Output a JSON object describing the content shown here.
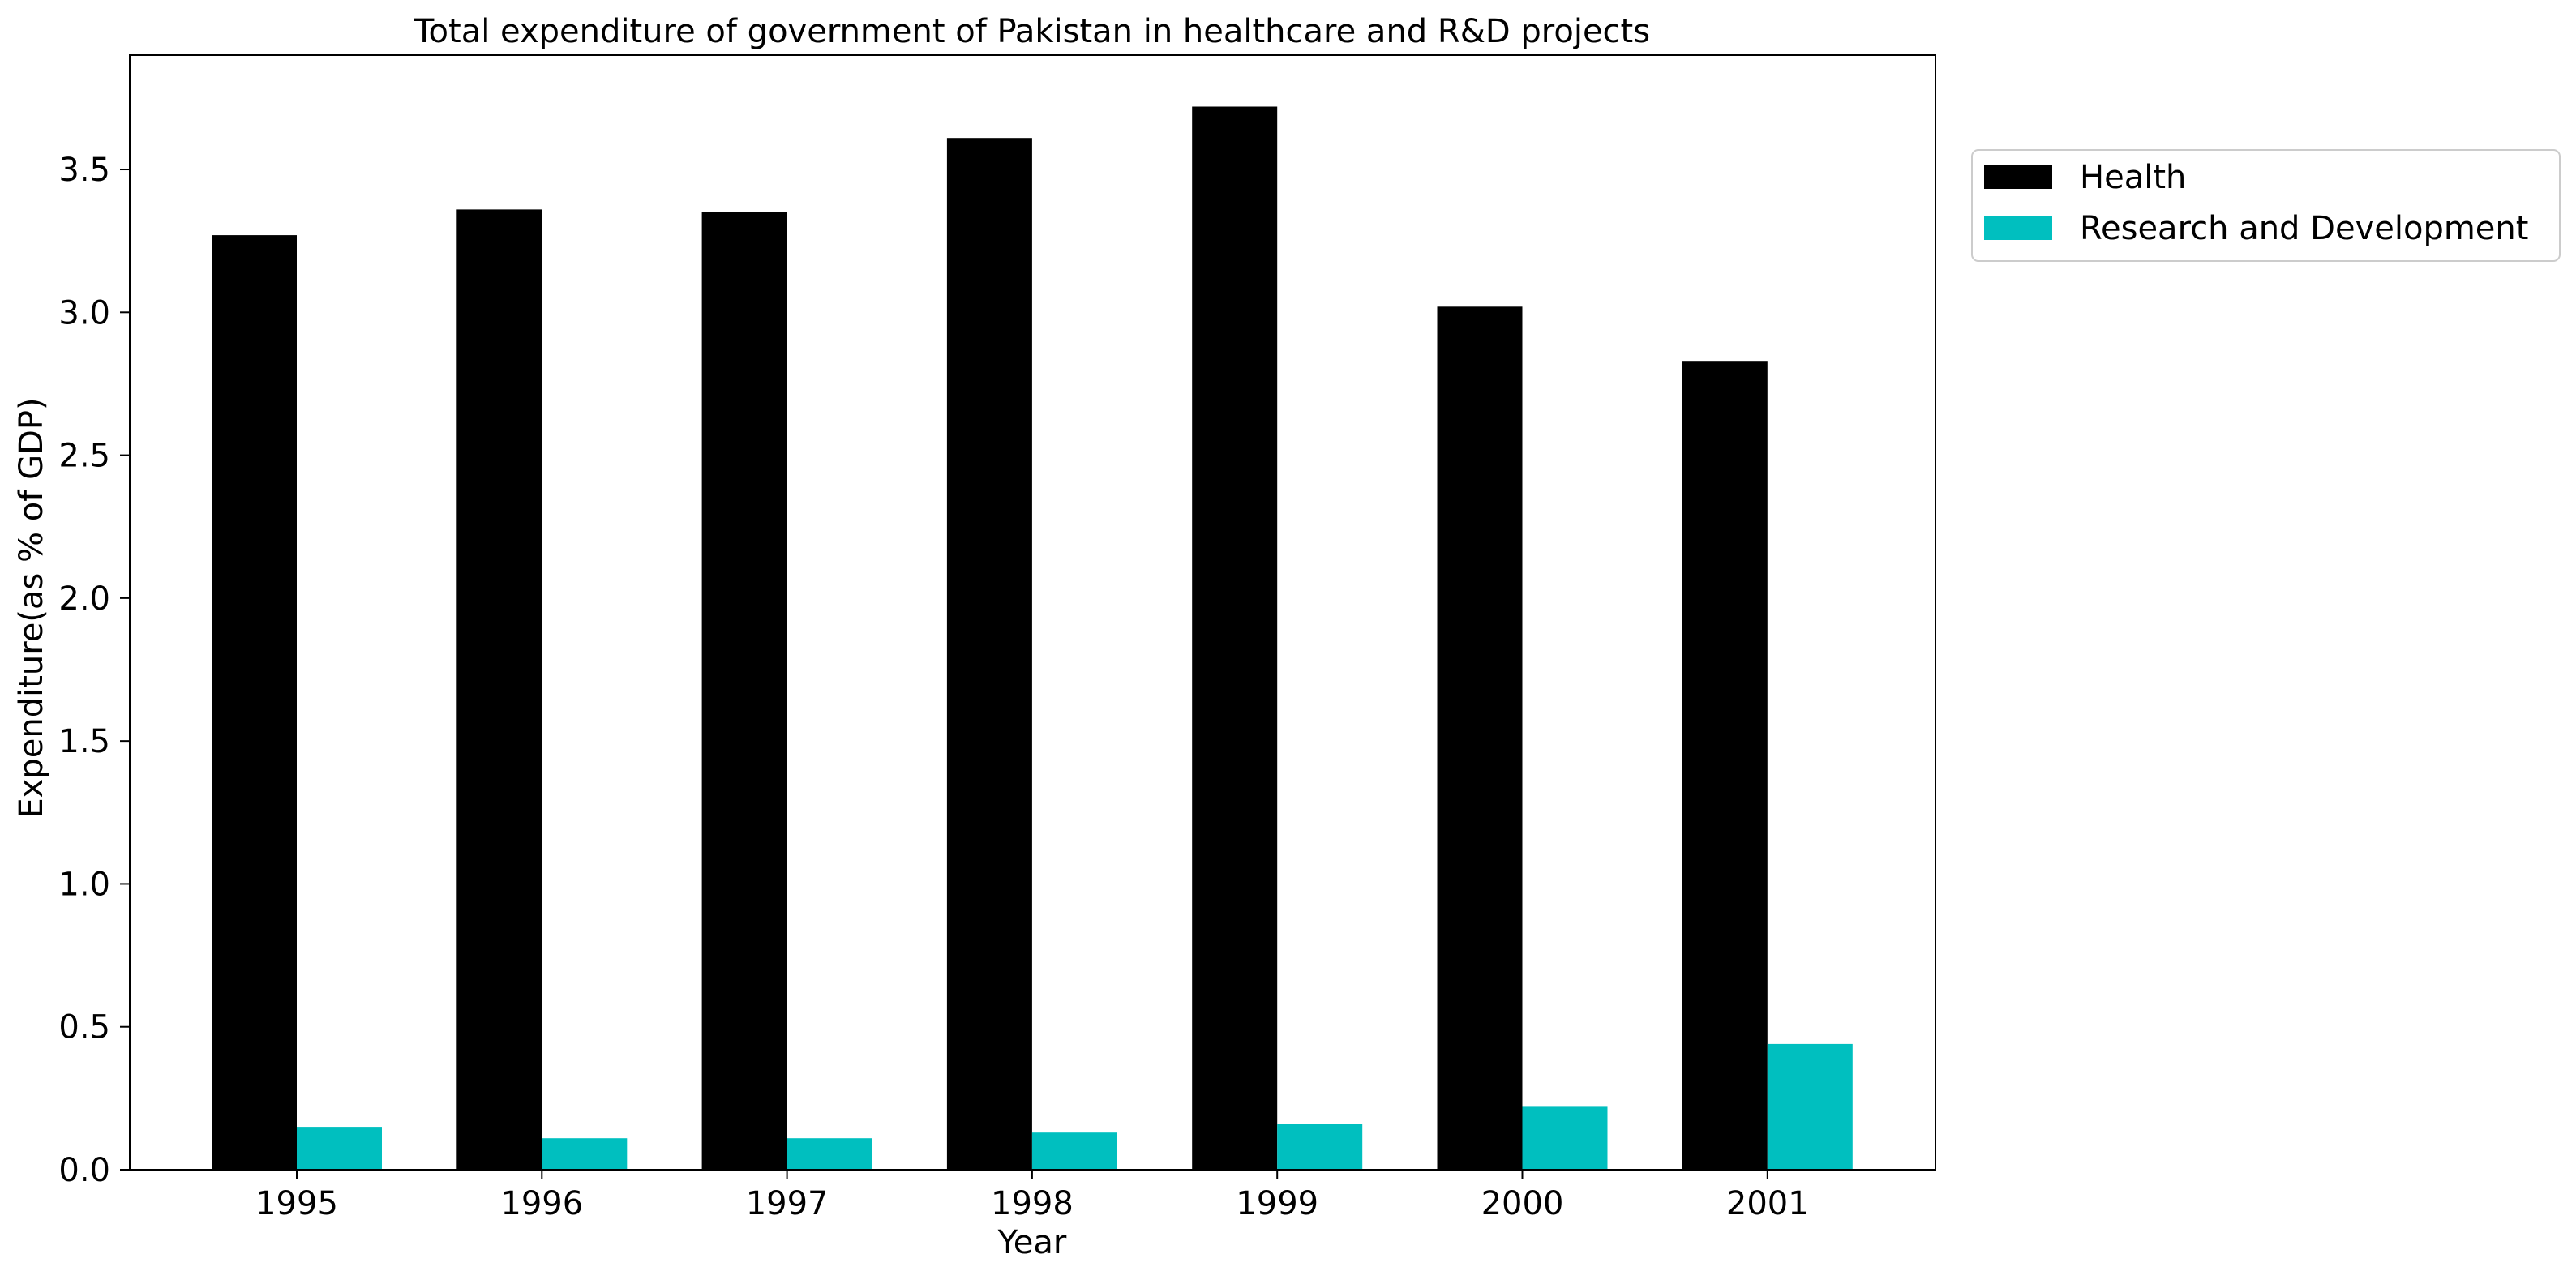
{
  "chart_data": {
    "type": "bar",
    "title": "Total expenditure of government of Pakistan in healthcare and R&D projects",
    "xlabel": "Year",
    "ylabel": "Expenditure(as % of GDP)",
    "categories": [
      "1995",
      "1996",
      "1997",
      "1998",
      "1999",
      "2000",
      "2001"
    ],
    "series": [
      {
        "name": "Health",
        "color": "#000000",
        "values": [
          3.27,
          3.36,
          3.35,
          3.61,
          3.72,
          3.02,
          2.83
        ]
      },
      {
        "name": "Research and Development",
        "color": "#00bfbf",
        "values": [
          0.15,
          0.11,
          0.11,
          0.13,
          0.16,
          0.22,
          0.44
        ]
      }
    ],
    "ylim": [
      0,
      3.9
    ],
    "yticks": [
      0.0,
      0.5,
      1.0,
      1.5,
      2.0,
      2.5,
      3.0,
      3.5
    ],
    "ytick_labels": [
      "0.0",
      "0.5",
      "1.0",
      "1.5",
      "2.0",
      "2.5",
      "3.0",
      "3.5"
    ],
    "grid": false,
    "legend_position": "upper-right-outside"
  }
}
